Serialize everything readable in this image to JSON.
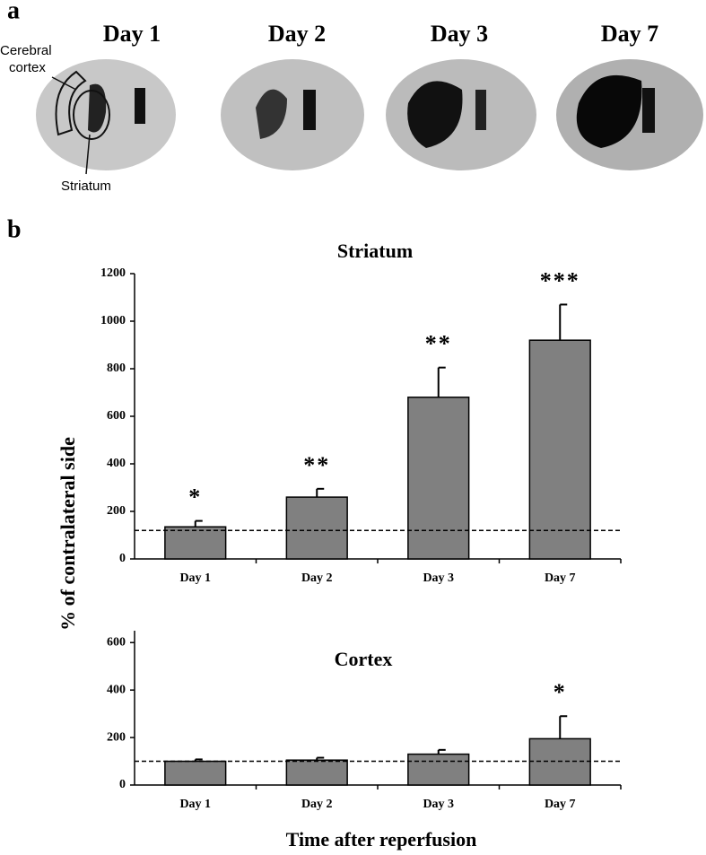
{
  "panel_a": {
    "label": "a",
    "image_labels": [
      "Day 1",
      "Day 2",
      "Day 3",
      "Day 7"
    ],
    "cortex_label": [
      "Cerebral",
      "cortex"
    ],
    "striatum_label": "Striatum"
  },
  "panel_b_label": "b",
  "chart_data": [
    {
      "type": "bar",
      "title": "Striatum",
      "ylabel": "% of contralateral side",
      "categories": [
        "Day 1",
        "Day 2",
        "Day 3",
        "Day 7"
      ],
      "values": [
        135,
        260,
        680,
        920
      ],
      "errors": [
        25,
        35,
        125,
        150
      ],
      "significance": [
        "*",
        "**",
        "**",
        "***"
      ],
      "reference_line": 120,
      "color": "#808080",
      "ylim": [
        0,
        1200
      ],
      "yticks": [
        0,
        200,
        400,
        600,
        800,
        1000,
        1200
      ]
    },
    {
      "type": "bar",
      "title": "Cortex",
      "xlabel": "Time after reperfusion",
      "categories": [
        "Day 1",
        "Day 2",
        "Day 3",
        "Day 7"
      ],
      "values": [
        100,
        105,
        130,
        195
      ],
      "errors": [
        8,
        10,
        18,
        95
      ],
      "significance": [
        null,
        null,
        null,
        "*"
      ],
      "reference_line": 100,
      "color": "#808080",
      "ylim": [
        0,
        650
      ],
      "yticks": [
        0,
        200,
        400,
        600
      ]
    }
  ]
}
